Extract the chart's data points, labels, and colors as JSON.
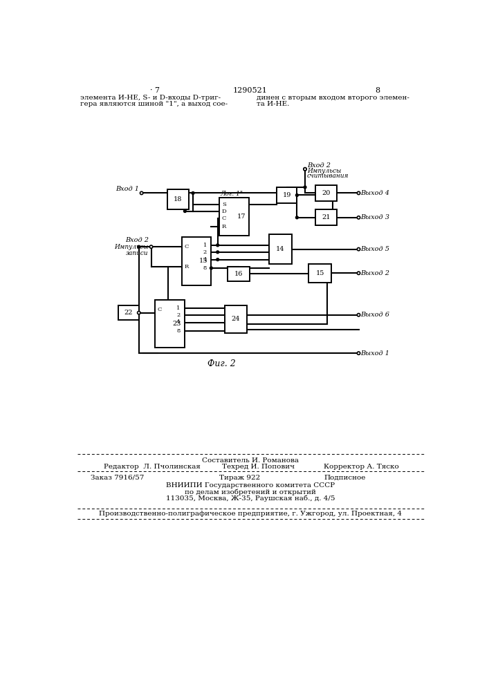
{
  "page_width": 7.07,
  "page_height": 10.0,
  "bg_color": "#ffffff",
  "page_num_left": "· 7",
  "page_num_center": "1290521",
  "page_num_right": "8"
}
